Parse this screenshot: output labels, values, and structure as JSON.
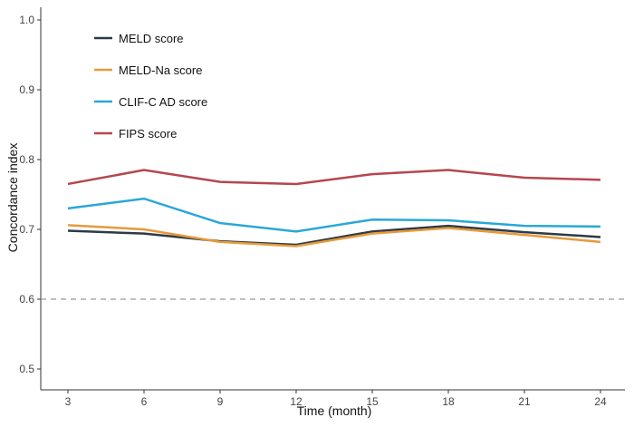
{
  "chart_data": {
    "type": "line",
    "title": "",
    "xlabel": "Time (month)",
    "ylabel": "Concordance index",
    "x": [
      3,
      6,
      9,
      12,
      15,
      18,
      21,
      24
    ],
    "xticks": [
      "3",
      "6",
      "9",
      "12",
      "15",
      "18",
      "21",
      "24"
    ],
    "yticks": [
      "0.5",
      "0.6",
      "0.7",
      "0.8",
      "0.9",
      "1.0"
    ],
    "ytick_values": [
      0.5,
      0.6,
      0.7,
      0.8,
      0.9,
      1.0
    ],
    "ylim": [
      0.47,
      1.02
    ],
    "xlim": [
      2,
      25
    ],
    "grid": false,
    "legend_position": "top-left",
    "reference_line": {
      "y": 0.6,
      "style": "dashed",
      "color": "#aaaaaa"
    },
    "series": [
      {
        "name": "MELD score",
        "color": "#2e3a44",
        "values": [
          0.698,
          0.694,
          0.683,
          0.678,
          0.697,
          0.705,
          0.696,
          0.689
        ]
      },
      {
        "name": "MELD-Na score",
        "color": "#e69a3c",
        "values": [
          0.706,
          0.7,
          0.682,
          0.676,
          0.694,
          0.702,
          0.692,
          0.682
        ]
      },
      {
        "name": "CLIF-C AD score",
        "color": "#2aa7d8",
        "values": [
          0.73,
          0.744,
          0.709,
          0.697,
          0.714,
          0.713,
          0.705,
          0.704
        ]
      },
      {
        "name": "FIPS score",
        "color": "#b5474e",
        "values": [
          0.765,
          0.785,
          0.768,
          0.765,
          0.779,
          0.785,
          0.774,
          0.771
        ]
      }
    ]
  }
}
